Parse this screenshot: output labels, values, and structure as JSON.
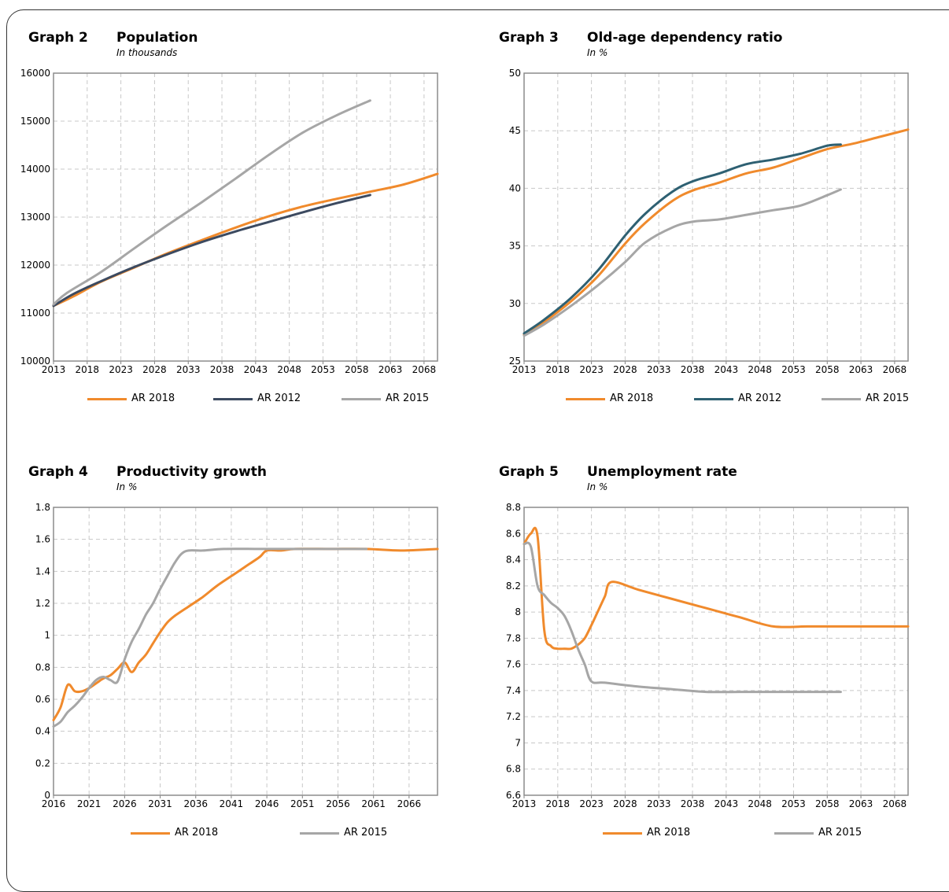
{
  "colors": {
    "orange": "#f08a2c",
    "navy": "#3c4a60",
    "teal": "#2e6072",
    "gray": "#a6a6a6"
  },
  "chart_data": [
    {
      "id": "g2",
      "type": "line",
      "graph_number": "Graph 2",
      "title": "Population",
      "subtitle": "In thousands",
      "xlim": [
        2013,
        2070
      ],
      "xticks": [
        "2013",
        "2018",
        "2023",
        "2028",
        "2033",
        "2038",
        "2043",
        "2048",
        "2053",
        "2058",
        "2063",
        "2068"
      ],
      "ylim": [
        10000,
        16000
      ],
      "yticks": [
        "10000",
        "11000",
        "12000",
        "13000",
        "14000",
        "15000",
        "16000"
      ],
      "grid": true,
      "legend_position": "bottom",
      "series": [
        {
          "name": "AR 2018",
          "color": "orange",
          "x": [
            2013,
            2016,
            2020,
            2025,
            2030,
            2035,
            2040,
            2045,
            2050,
            2055,
            2060,
            2065,
            2070
          ],
          "y": [
            11150,
            11350,
            11650,
            11950,
            12250,
            12520,
            12780,
            13020,
            13220,
            13380,
            13530,
            13680,
            13900
          ]
        },
        {
          "name": "AR 2012",
          "color": "navy",
          "x": [
            2013,
            2016,
            2020,
            2025,
            2030,
            2035,
            2040,
            2045,
            2050,
            2055,
            2060
          ],
          "y": [
            11150,
            11400,
            11660,
            11960,
            12230,
            12480,
            12700,
            12900,
            13100,
            13290,
            13460
          ]
        },
        {
          "name": "AR 2015",
          "color": "gray",
          "x": [
            2013,
            2015,
            2020,
            2025,
            2030,
            2035,
            2040,
            2045,
            2050,
            2055,
            2060
          ],
          "y": [
            11180,
            11420,
            11850,
            12350,
            12840,
            13310,
            13800,
            14300,
            14760,
            15120,
            15430
          ]
        }
      ]
    },
    {
      "id": "g3",
      "type": "line",
      "graph_number": "Graph 3",
      "title": "Old-age dependency ratio",
      "subtitle": "In %",
      "xlim": [
        2013,
        2070
      ],
      "xticks": [
        "2013",
        "2018",
        "2023",
        "2028",
        "2033",
        "2038",
        "2043",
        "2048",
        "2053",
        "2058",
        "2063",
        "2068"
      ],
      "ylim": [
        25,
        50
      ],
      "yticks": [
        "25",
        "30",
        "35",
        "40",
        "45",
        "50"
      ],
      "grid": true,
      "legend_position": "bottom",
      "series": [
        {
          "name": "AR 2018",
          "color": "orange",
          "x": [
            2013,
            2016,
            2020,
            2024,
            2028,
            2031,
            2035,
            2038,
            2042,
            2046,
            2050,
            2054,
            2058,
            2062,
            2066,
            2070
          ],
          "y": [
            27.3,
            28.4,
            30.2,
            32.4,
            35.2,
            37.0,
            38.9,
            39.8,
            40.5,
            41.3,
            41.8,
            42.6,
            43.4,
            43.9,
            44.5,
            45.1
          ]
        },
        {
          "name": "AR 2012",
          "color": "teal",
          "x": [
            2013,
            2016,
            2020,
            2024,
            2028,
            2031,
            2035,
            2038,
            2042,
            2046,
            2050,
            2054,
            2058,
            2060
          ],
          "y": [
            27.4,
            28.6,
            30.5,
            32.9,
            35.9,
            37.8,
            39.7,
            40.6,
            41.3,
            42.1,
            42.5,
            43.0,
            43.7,
            43.8
          ]
        },
        {
          "name": "AR 2015",
          "color": "gray",
          "x": [
            2013,
            2016,
            2020,
            2024,
            2028,
            2031,
            2035,
            2038,
            2042,
            2046,
            2050,
            2054,
            2058,
            2060
          ],
          "y": [
            27.2,
            28.2,
            29.8,
            31.6,
            33.6,
            35.3,
            36.6,
            37.1,
            37.3,
            37.7,
            38.1,
            38.5,
            39.4,
            39.9
          ]
        }
      ]
    },
    {
      "id": "g4",
      "type": "line",
      "graph_number": "Graph 4",
      "title": "Productivity growth",
      "subtitle": "In %",
      "xlim": [
        2016,
        2070
      ],
      "xticks": [
        "2016",
        "2021",
        "2026",
        "2031",
        "2036",
        "2041",
        "2046",
        "2051",
        "2056",
        "2061",
        "2066"
      ],
      "ylim": [
        0,
        1.8
      ],
      "yticks": [
        "0",
        "0.2",
        "0.4",
        "0.6",
        "0.8",
        "1",
        "1.2",
        "1.4",
        "1.6",
        "1.8"
      ],
      "grid": true,
      "legend_position": "bottom",
      "series": [
        {
          "name": "AR 2018",
          "color": "orange",
          "x": [
            2016,
            2017,
            2018,
            2019,
            2020,
            2021,
            2022,
            2023,
            2024,
            2025,
            2026,
            2027,
            2028,
            2029,
            2030,
            2031,
            2032,
            2033,
            2035,
            2037,
            2039,
            2041,
            2043,
            2045,
            2046,
            2048,
            2050,
            2055,
            2060,
            2065,
            2070
          ],
          "y": [
            0.47,
            0.55,
            0.69,
            0.65,
            0.65,
            0.67,
            0.7,
            0.73,
            0.75,
            0.79,
            0.83,
            0.77,
            0.83,
            0.88,
            0.95,
            1.02,
            1.08,
            1.12,
            1.18,
            1.24,
            1.31,
            1.37,
            1.43,
            1.49,
            1.53,
            1.53,
            1.54,
            1.54,
            1.54,
            1.53,
            1.54
          ]
        },
        {
          "name": "AR 2015",
          "color": "gray",
          "x": [
            2016,
            2017,
            2018,
            2019,
            2020,
            2021,
            2022,
            2023,
            2024,
            2025,
            2026,
            2027,
            2028,
            2029,
            2030,
            2031,
            2032,
            2033,
            2034,
            2035,
            2037,
            2040,
            2045,
            2050,
            2055,
            2060
          ],
          "y": [
            0.43,
            0.46,
            0.52,
            0.56,
            0.61,
            0.67,
            0.72,
            0.74,
            0.72,
            0.71,
            0.85,
            0.96,
            1.04,
            1.13,
            1.2,
            1.29,
            1.37,
            1.45,
            1.51,
            1.53,
            1.53,
            1.54,
            1.54,
            1.54,
            1.54,
            1.54
          ]
        }
      ]
    },
    {
      "id": "g5",
      "type": "line",
      "graph_number": "Graph 5",
      "title": "Unemployment rate",
      "subtitle": "In %",
      "xlim": [
        2013,
        2070
      ],
      "xticks": [
        "2013",
        "2018",
        "2023",
        "2028",
        "2033",
        "2038",
        "2043",
        "2048",
        "2053",
        "2058",
        "2063",
        "2068"
      ],
      "ylim": [
        6.6,
        8.8
      ],
      "yticks": [
        "6.6",
        "6.8",
        "7",
        "7.2",
        "7.4",
        "7.6",
        "7.8",
        "8",
        "8.2",
        "8.4",
        "8.6",
        "8.8"
      ],
      "grid": true,
      "legend_position": "bottom",
      "series": [
        {
          "name": "AR 2018",
          "color": "orange",
          "x": [
            2013,
            2014,
            2015,
            2016,
            2017,
            2018,
            2019,
            2020,
            2021,
            2022,
            2023,
            2024,
            2025,
            2026,
            2030,
            2035,
            2040,
            2045,
            2050,
            2055,
            2060,
            2065,
            2070
          ],
          "y": [
            8.52,
            8.6,
            8.58,
            7.86,
            7.74,
            7.72,
            7.72,
            7.72,
            7.75,
            7.8,
            7.9,
            8.01,
            8.12,
            8.23,
            8.17,
            8.1,
            8.03,
            7.96,
            7.89,
            7.89,
            7.89,
            7.89,
            7.89
          ]
        },
        {
          "name": "AR 2015",
          "color": "gray",
          "x": [
            2013,
            2014,
            2015,
            2016,
            2017,
            2018,
            2019,
            2020,
            2021,
            2022,
            2023,
            2025,
            2030,
            2035,
            2040,
            2045,
            2050,
            2055,
            2060
          ],
          "y": [
            8.52,
            8.5,
            8.2,
            8.13,
            8.07,
            8.03,
            7.97,
            7.86,
            7.72,
            7.6,
            7.47,
            7.46,
            7.43,
            7.41,
            7.39,
            7.39,
            7.39,
            7.39,
            7.39
          ]
        }
      ]
    }
  ]
}
